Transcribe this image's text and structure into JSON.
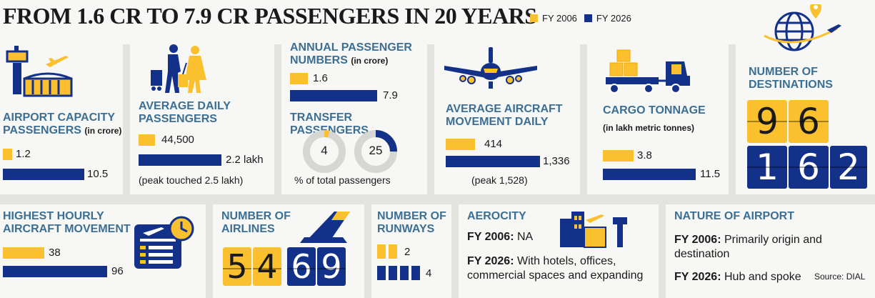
{
  "title": "FROM 1.6 CR TO 7.9 CR PASSENGERS IN 20 YEARS",
  "legend": {
    "fy2006": "FY 2006",
    "fy2026": "FY 2026"
  },
  "colors": {
    "fy2006": "#fbc02d",
    "fy2026": "#14318a",
    "heading": "#3c6f93"
  },
  "panels": {
    "airport_capacity": {
      "heading": "AIRPORT CAPACITY PASSENGERS",
      "unit": "(in crore)",
      "v2006": "1.2",
      "v2026": "10.5"
    },
    "daily_passengers": {
      "heading": "AVERAGE DAILY PASSENGERS",
      "v2006": "44,500",
      "v2026": "2.2 lakh",
      "note": "(peak touched 2.5 lakh)"
    },
    "annual_passengers": {
      "heading": "ANNUAL PASSENGER NUMBERS",
      "unit": "(in crore)",
      "v2006": "1.6",
      "v2026": "7.9"
    },
    "transfer_passengers": {
      "heading": "TRANSFER PASSENGERS",
      "v2006": "4",
      "v2026": "25",
      "note": "% of total passengers"
    },
    "aircraft_movement": {
      "heading": "AVERAGE AIRCRAFT MOVEMENT DAILY",
      "v2006": "414",
      "v2026": "1,336",
      "note": "(peak 1,528)"
    },
    "cargo": {
      "heading": "CARGO TONNAGE",
      "unit": "(in lakh metric tonnes)",
      "v2006": "3.8",
      "v2026": "11.5"
    },
    "destinations": {
      "heading": "NUMBER OF DESTINATIONS",
      "v2006_digits": [
        "9",
        "6"
      ],
      "v2026_digits": [
        "1",
        "6",
        "2"
      ]
    },
    "hourly_movement": {
      "heading": "HIGHEST HOURLY AIRCRAFT MOVEMENT",
      "v2006": "38",
      "v2026": "96"
    },
    "airlines": {
      "heading": "NUMBER OF AIRLINES",
      "v2006_digits": [
        "5",
        "4"
      ],
      "v2026_digits": [
        "6",
        "9"
      ]
    },
    "runways": {
      "heading": "NUMBER OF RUNWAYS",
      "v2006": "2",
      "v2026": "4"
    },
    "aerocity": {
      "heading": "AEROCITY",
      "fy2006_label": "FY 2006:",
      "fy2006_text": "NA",
      "fy2026_label": "FY 2026:",
      "fy2026_text": "With hotels, offices, commercial spaces and expanding"
    },
    "nature": {
      "heading": "NATURE OF AIRPORT",
      "fy2006_label": "FY 2006:",
      "fy2006_text": "Primarily origin and destination",
      "fy2026_label": "FY 2026:",
      "fy2026_text": "Hub and spoke"
    }
  },
  "source": "Source: DIAL",
  "icons": [
    "control-tower-icon",
    "airplane-icon",
    "travellers-icon",
    "jet-icon",
    "cargo-truck-icon",
    "globe-icon",
    "boarding-pass-icon",
    "tail-fin-icon",
    "city-icon"
  ],
  "chart_data": [
    {
      "type": "bar",
      "title": "AIRPORT CAPACITY PASSENGERS (in crore)",
      "categories": [
        "FY 2006",
        "FY 2026"
      ],
      "values": [
        1.2,
        10.5
      ]
    },
    {
      "type": "bar",
      "title": "AVERAGE DAILY PASSENGERS",
      "categories": [
        "FY 2006",
        "FY 2026"
      ],
      "values": [
        44500,
        220000
      ]
    },
    {
      "type": "bar",
      "title": "ANNUAL PASSENGER NUMBERS (in crore)",
      "categories": [
        "FY 2006",
        "FY 2026"
      ],
      "values": [
        1.6,
        7.9
      ]
    },
    {
      "type": "pie",
      "title": "TRANSFER PASSENGERS",
      "categories": [
        "FY 2006",
        "FY 2026"
      ],
      "values": [
        4,
        25
      ]
    },
    {
      "type": "bar",
      "title": "AVERAGE AIRCRAFT MOVEMENT DAILY",
      "categories": [
        "FY 2006",
        "FY 2026"
      ],
      "values": [
        414,
        1336
      ]
    },
    {
      "type": "bar",
      "title": "CARGO TONNAGE (in lakh metric tonnes)",
      "categories": [
        "FY 2006",
        "FY 2026"
      ],
      "values": [
        3.8,
        11.5
      ]
    },
    {
      "type": "table",
      "title": "NUMBER OF DESTINATIONS",
      "categories": [
        "FY 2006",
        "FY 2026"
      ],
      "values": [
        96,
        162
      ]
    },
    {
      "type": "bar",
      "title": "HIGHEST HOURLY AIRCRAFT MOVEMENT",
      "categories": [
        "FY 2006",
        "FY 2026"
      ],
      "values": [
        38,
        96
      ]
    },
    {
      "type": "table",
      "title": "NUMBER OF AIRLINES",
      "categories": [
        "FY 2006",
        "FY 2026"
      ],
      "values": [
        54,
        69
      ]
    },
    {
      "type": "bar",
      "title": "NUMBER OF RUNWAYS",
      "categories": [
        "FY 2006",
        "FY 2026"
      ],
      "values": [
        2,
        4
      ]
    }
  ]
}
